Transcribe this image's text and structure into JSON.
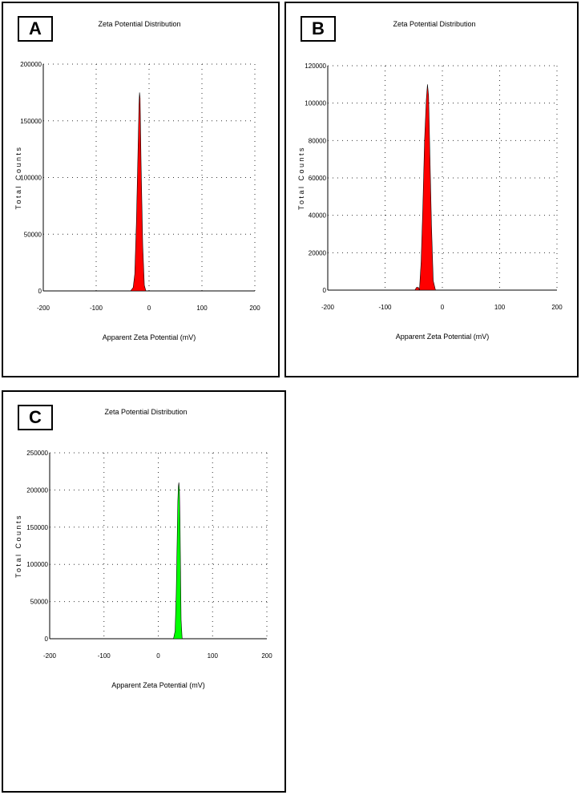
{
  "chart_data": [
    {
      "panel_label": "A",
      "type": "area",
      "title": "Zeta Potential Distribution",
      "xlabel": "Apparent Zeta Potential (mV)",
      "ylabel": "Total Counts",
      "xlim": [
        -200,
        200
      ],
      "ylim": [
        0,
        200000
      ],
      "xticks": [
        -200,
        -100,
        0,
        100,
        200
      ],
      "yticks": [
        0,
        50000,
        100000,
        150000,
        200000
      ],
      "grid": true,
      "color": "#ff0000",
      "series": [
        {
          "x": [
            -35,
            -30,
            -27,
            -24,
            -21,
            -19,
            -18,
            -17,
            -15,
            -12,
            -9,
            -6
          ],
          "y": [
            0,
            3000,
            15000,
            60000,
            120000,
            165000,
            175000,
            170000,
            110000,
            40000,
            5000,
            0
          ]
        }
      ]
    },
    {
      "panel_label": "B",
      "type": "area",
      "title": "Zeta Potential Distribution",
      "xlabel": "Apparent Zeta Potential (mV)",
      "ylabel": "Total Counts",
      "xlim": [
        -200,
        200
      ],
      "ylim": [
        0,
        120000
      ],
      "xticks": [
        -200,
        -100,
        0,
        100,
        200
      ],
      "yticks": [
        0,
        20000,
        40000,
        60000,
        80000,
        100000,
        120000
      ],
      "grid": true,
      "color": "#ff0000",
      "series": [
        {
          "x": [
            -48,
            -45,
            -42,
            -40,
            -37,
            -34,
            -31,
            -28,
            -26,
            -24,
            -22,
            -19,
            -16,
            -12
          ],
          "y": [
            0,
            1500,
            1500,
            0,
            15000,
            45000,
            80000,
            102000,
            110000,
            104000,
            75000,
            35000,
            5000,
            0
          ]
        }
      ]
    },
    {
      "panel_label": "C",
      "type": "area",
      "title": "Zeta Potential Distribution",
      "xlabel": "Apparent Zeta Potential (mV)",
      "ylabel": "Total Counts",
      "xlim": [
        -200,
        200
      ],
      "ylim": [
        0,
        250000
      ],
      "xticks": [
        -200,
        -100,
        0,
        100,
        200
      ],
      "yticks": [
        0,
        50000,
        100000,
        150000,
        200000,
        250000
      ],
      "grid": true,
      "color": "#00ff00",
      "series": [
        {
          "x": [
            28,
            31,
            33,
            35,
            36,
            37,
            38,
            39,
            40,
            41,
            42,
            44
          ],
          "y": [
            0,
            10000,
            60000,
            140000,
            185000,
            205000,
            210000,
            200000,
            160000,
            90000,
            25000,
            0
          ]
        }
      ]
    }
  ]
}
